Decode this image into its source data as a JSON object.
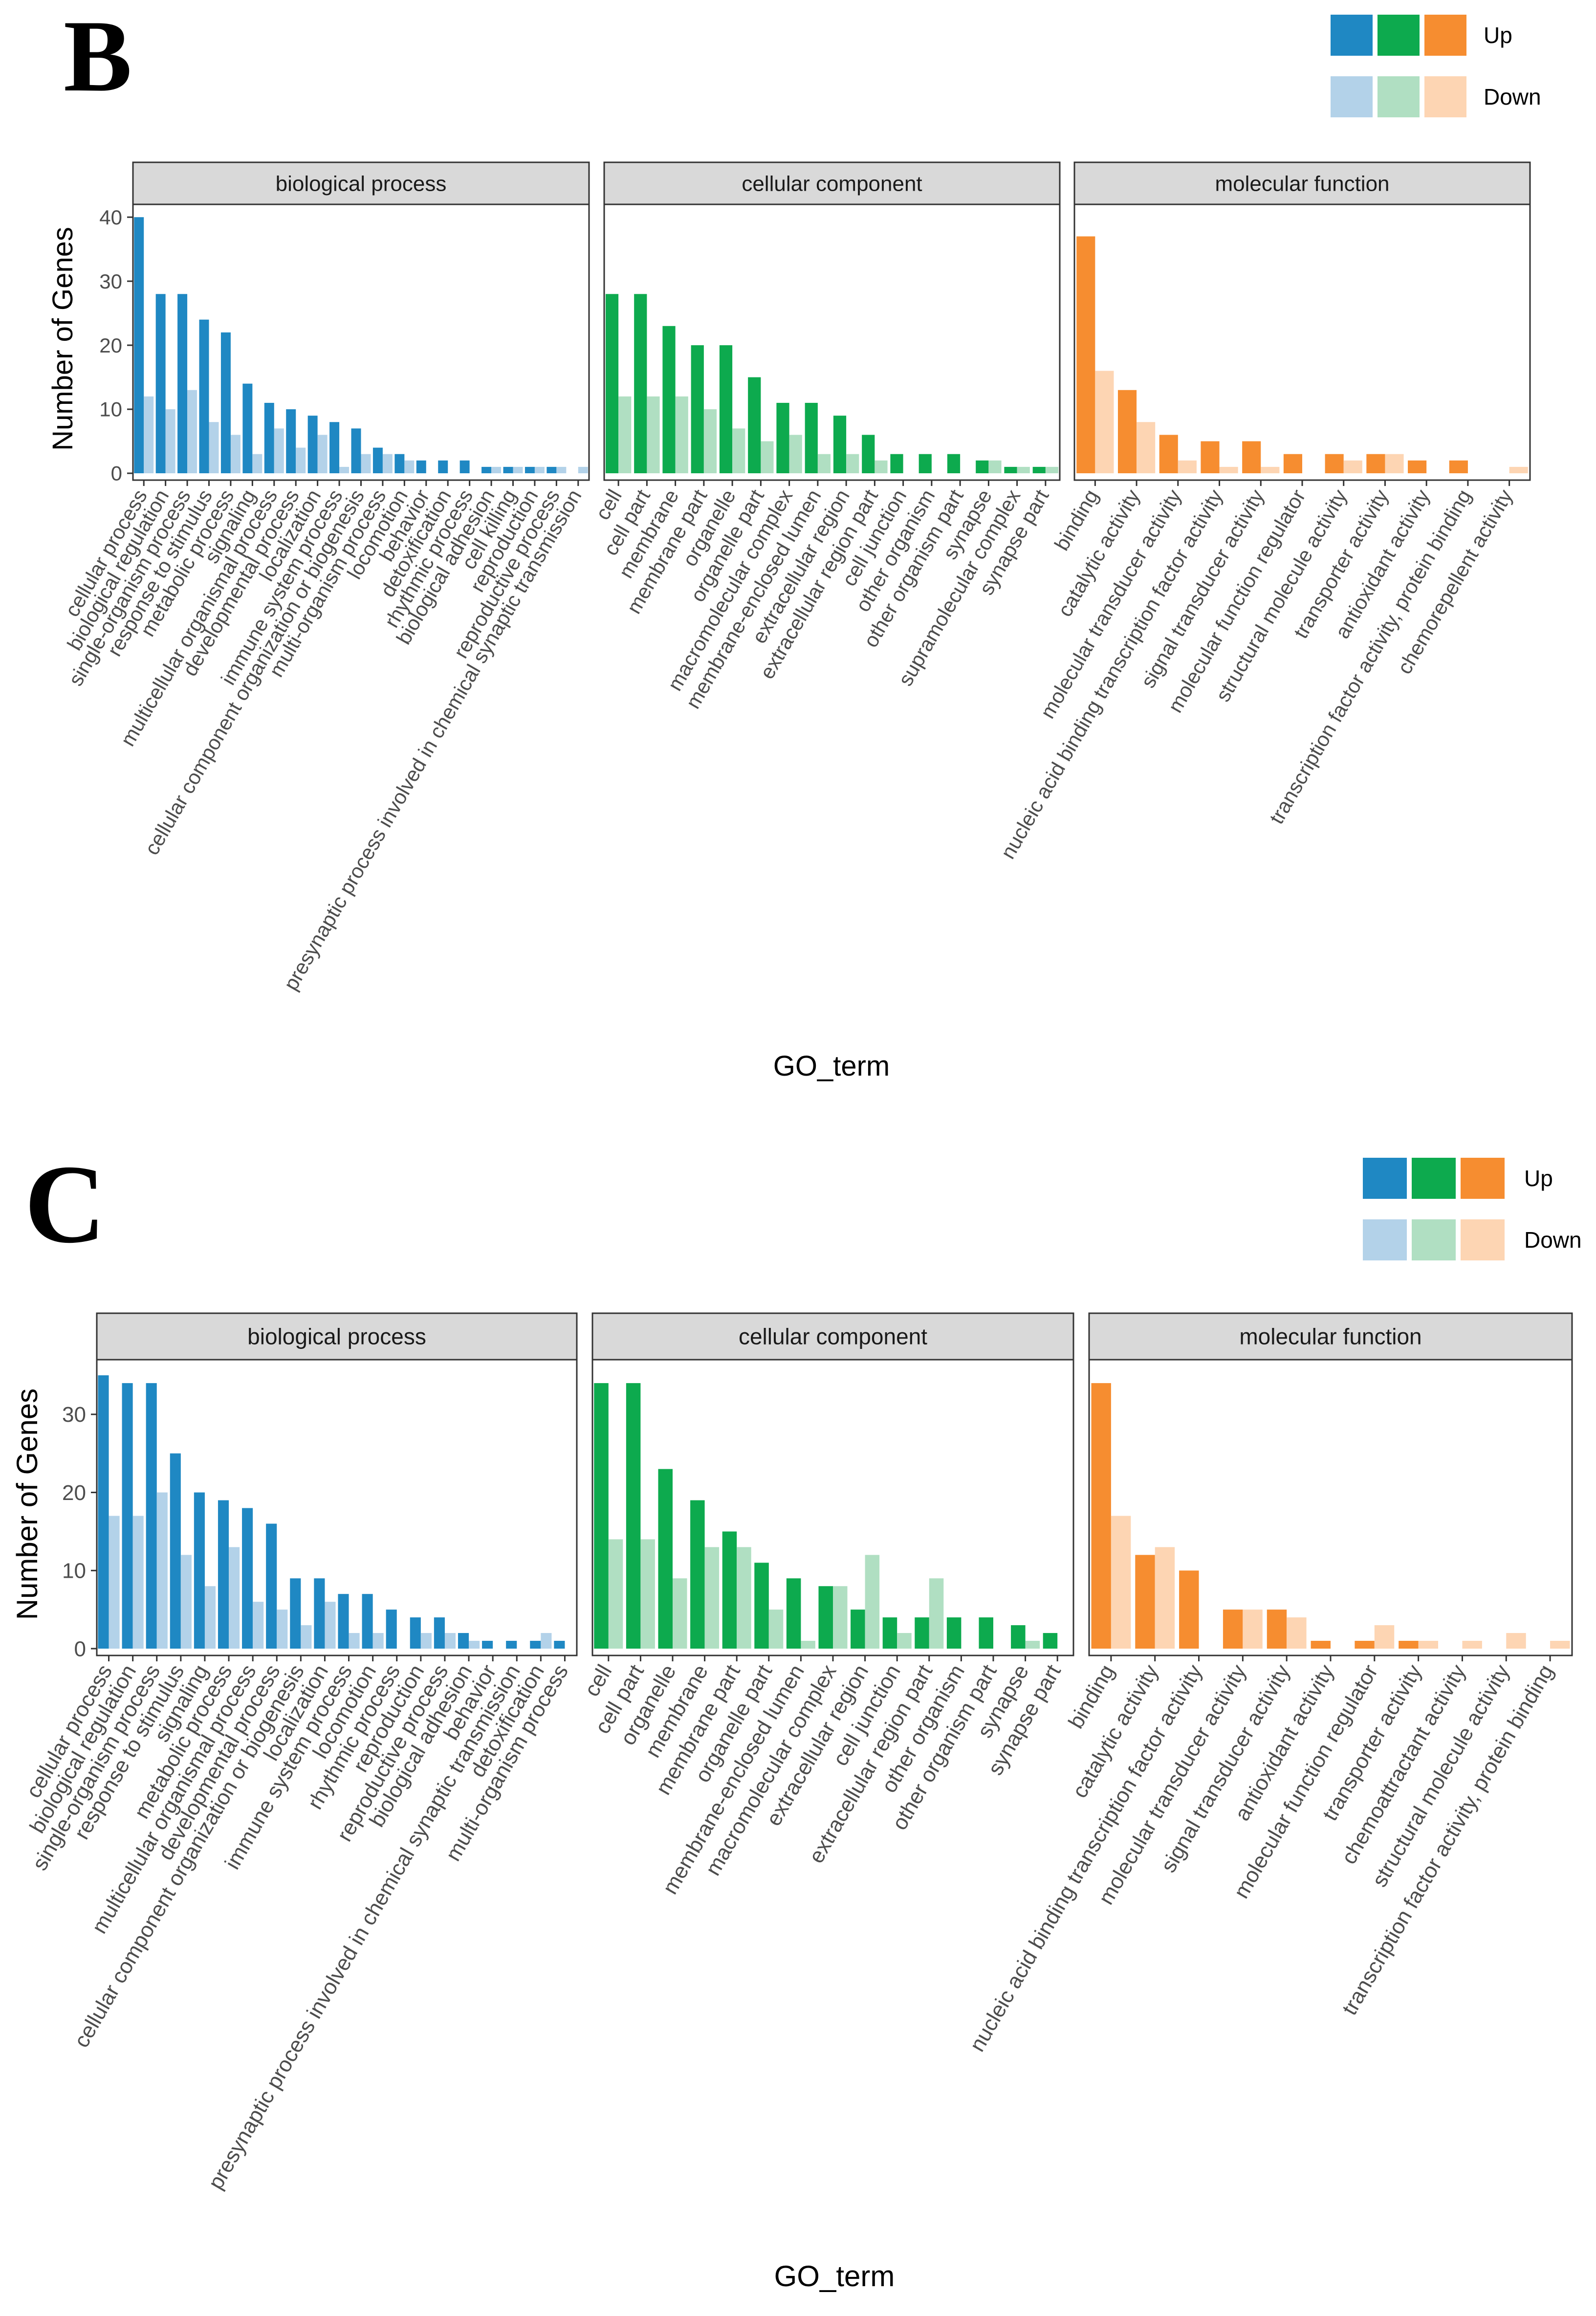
{
  "legend": {
    "up_label": "Up",
    "down_label": "Down"
  },
  "colors": {
    "biological process": {
      "up": "#1F88C3",
      "down": "#B3D2E9"
    },
    "cellular component": {
      "up": "#0DAA4E",
      "down": "#B0DFC2"
    },
    "molecular function": {
      "up": "#F68D30",
      "down": "#FDD5B3"
    }
  },
  "chart_data": [
    {
      "panel": "B",
      "type": "bar",
      "ylabel": "Number of Genes",
      "xlabel": "GO_term",
      "ylim": [
        0,
        42
      ],
      "yticks": [
        0,
        10,
        20,
        30,
        40
      ],
      "facets": [
        {
          "title": "biological process",
          "categories": [
            "cellular process",
            "biological regulation",
            "single-organism process",
            "response to stimulus",
            "metabolic process",
            "signaling",
            "multicellular organismal process",
            "developmental process",
            "localization",
            "immune system process",
            "cellular component organization or biogenesis",
            "multi-organism process",
            "locomotion",
            "behavior",
            "detoxification",
            "rhythmic process",
            "biological adhesion",
            "cell killing",
            "reproduction",
            "reproductive process",
            "presynaptic process involved in chemical synaptic transmission"
          ],
          "series": [
            {
              "name": "Up",
              "values": [
                40,
                28,
                28,
                24,
                22,
                14,
                11,
                10,
                9,
                8,
                7,
                4,
                3,
                2,
                2,
                2,
                1,
                1,
                1,
                1,
                0
              ]
            },
            {
              "name": "Down",
              "values": [
                12,
                10,
                13,
                8,
                6,
                3,
                7,
                4,
                6,
                1,
                3,
                3,
                2,
                0,
                0,
                0,
                1,
                1,
                1,
                1,
                1
              ]
            }
          ]
        },
        {
          "title": "cellular component",
          "categories": [
            "cell",
            "cell part",
            "membrane",
            "membrane part",
            "organelle",
            "organelle part",
            "macromolecular complex",
            "membrane-enclosed lumen",
            "extracellular region",
            "extracellular region part",
            "cell junction",
            "other organism",
            "other organism part",
            "synapse",
            "supramolecular complex",
            "synapse part"
          ],
          "series": [
            {
              "name": "Up",
              "values": [
                28,
                28,
                23,
                20,
                20,
                15,
                11,
                11,
                9,
                6,
                3,
                3,
                3,
                2,
                1,
                1
              ]
            },
            {
              "name": "Down",
              "values": [
                12,
                12,
                12,
                10,
                7,
                5,
                6,
                3,
                3,
                2,
                0,
                0,
                0,
                2,
                1,
                1
              ]
            }
          ]
        },
        {
          "title": "molecular function",
          "categories": [
            "binding",
            "catalytic activity",
            "molecular transducer activity",
            "nucleic acid binding transcription factor activity",
            "signal transducer activity",
            "molecular function regulator",
            "structural molecule activity",
            "transporter activity",
            "antioxidant activity",
            "transcription factor activity, protein binding",
            "chemorepellent activity"
          ],
          "series": [
            {
              "name": "Up",
              "values": [
                37,
                13,
                6,
                5,
                5,
                3,
                3,
                3,
                2,
                2,
                0
              ]
            },
            {
              "name": "Down",
              "values": [
                16,
                8,
                2,
                1,
                1,
                0,
                2,
                3,
                0,
                0,
                1
              ]
            }
          ]
        }
      ]
    },
    {
      "panel": "C",
      "type": "bar",
      "ylabel": "Number of Genes",
      "xlabel": "GO_term",
      "ylim": [
        0,
        37
      ],
      "yticks": [
        0,
        10,
        20,
        30
      ],
      "facets": [
        {
          "title": "biological process",
          "categories": [
            "cellular process",
            "biological regulation",
            "single-organism process",
            "response to stimulus",
            "signaling",
            "metabolic process",
            "multicellular organismal process",
            "developmental process",
            "cellular component organization or biogenesis",
            "localization",
            "immune system process",
            "locomotion",
            "rhythmic process",
            "reproduction",
            "reproductive process",
            "biological adhesion",
            "behavior",
            "presynaptic process involved in chemical synaptic transmission",
            "detoxification",
            "multi-organism process"
          ],
          "series": [
            {
              "name": "Up",
              "values": [
                35,
                34,
                34,
                25,
                20,
                19,
                18,
                16,
                9,
                9,
                7,
                7,
                5,
                4,
                4,
                2,
                1,
                1,
                1,
                1
              ]
            },
            {
              "name": "Down",
              "values": [
                17,
                17,
                20,
                12,
                8,
                13,
                6,
                5,
                3,
                6,
                2,
                2,
                0,
                2,
                2,
                1,
                0,
                0,
                2,
                0
              ]
            }
          ]
        },
        {
          "title": "cellular component",
          "categories": [
            "cell",
            "cell part",
            "organelle",
            "membrane",
            "membrane part",
            "organelle part",
            "membrane-enclosed lumen",
            "macromolecular complex",
            "extracellular region",
            "cell junction",
            "extracellular region part",
            "other organism",
            "other organism part",
            "synapse",
            "synapse part"
          ],
          "series": [
            {
              "name": "Up",
              "values": [
                34,
                34,
                23,
                19,
                15,
                11,
                9,
                8,
                5,
                4,
                4,
                4,
                4,
                3,
                2
              ]
            },
            {
              "name": "Down",
              "values": [
                14,
                14,
                9,
                13,
                13,
                5,
                1,
                8,
                12,
                2,
                9,
                0,
                0,
                1,
                0
              ]
            }
          ]
        },
        {
          "title": "molecular function",
          "categories": [
            "binding",
            "catalytic activity",
            "nucleic acid binding transcription factor activity",
            "molecular transducer activity",
            "signal transducer activity",
            "antioxidant activity",
            "molecular function regulator",
            "transporter activity",
            "chemoattractant activity",
            "structural molecule activity",
            "transcription factor activity, protein binding"
          ],
          "series": [
            {
              "name": "Up",
              "values": [
                34,
                12,
                10,
                5,
                5,
                1,
                1,
                1,
                0,
                0,
                0
              ]
            },
            {
              "name": "Down",
              "values": [
                17,
                13,
                0,
                5,
                4,
                0,
                3,
                1,
                1,
                2,
                1
              ]
            }
          ]
        }
      ]
    }
  ]
}
